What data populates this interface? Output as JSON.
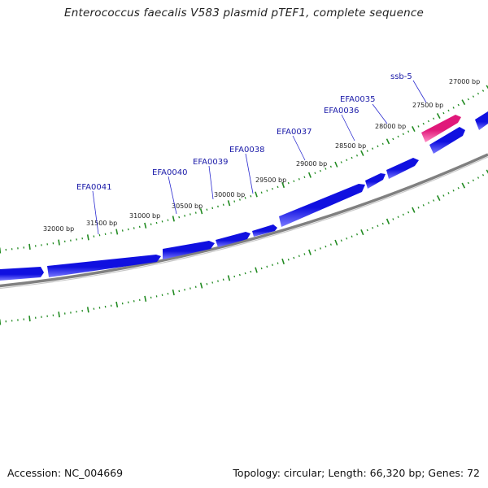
{
  "title": "Enterococcus faecalis V583 plasmid pTEF1, complete sequence",
  "footer": {
    "accession": "Accession: NC_004669",
    "summary": "Topology: circular; Length: 66,320 bp; Genes: 72"
  },
  "colors": {
    "gene_forward": "#1010e0",
    "gene_forward_highlight": "#6a6aff",
    "gene_rna": "#e0187a",
    "gene_rna_highlight": "#ff7fbf",
    "backbone": "#808080",
    "ticks": "#228b22",
    "label_leader": "#2a2ad0"
  },
  "scale_labels": [
    "27000 bp",
    "27500 bp",
    "28000 bp",
    "28500 bp",
    "29000 bp",
    "29500 bp",
    "30000 bp",
    "30500 bp",
    "31000 bp",
    "31500 bp",
    "32000 bp"
  ],
  "gene_labels": [
    "ssb-5",
    "EFA0035",
    "EFA0036",
    "EFA0037",
    "EFA0038",
    "EFA0039",
    "EFA0040",
    "EFA0041"
  ]
}
